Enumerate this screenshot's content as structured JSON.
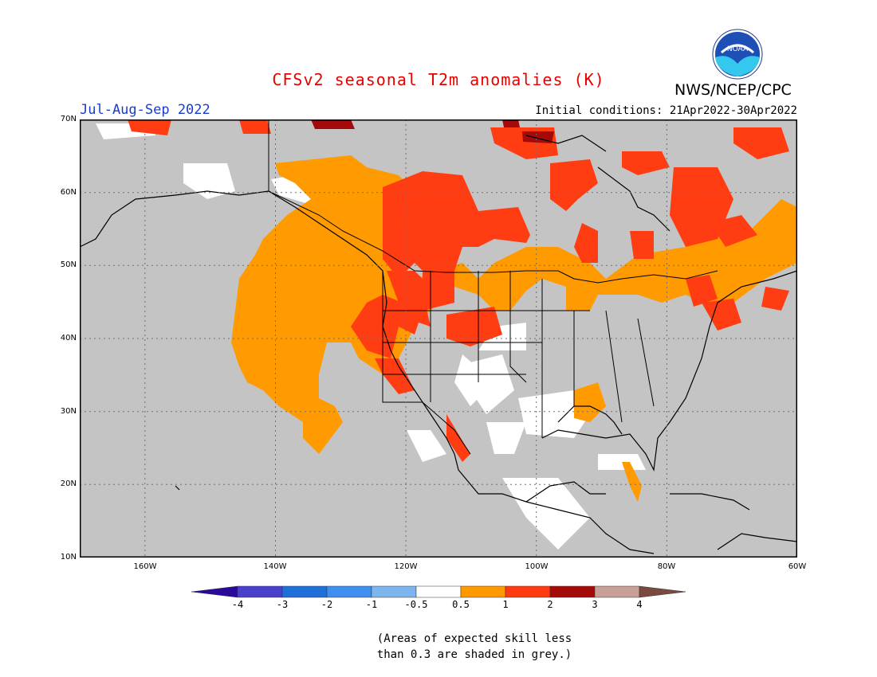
{
  "title": "CFSv2 seasonal T2m anomalies (K)",
  "agency": "NWS/NCEP/CPC",
  "logo_text": "NOAA",
  "season": "Jul-Aug-Sep 2022",
  "initial_conditions": "Initial conditions: 21Apr2022-30Apr2022",
  "lat_labels": [
    "70N",
    "60N",
    "50N",
    "40N",
    "30N",
    "20N",
    "10N"
  ],
  "lon_labels": [
    "160W",
    "140W",
    "120W",
    "100W",
    "80W",
    "60W"
  ],
  "colorbar": {
    "labels": [
      "-4",
      "-3",
      "-2",
      "-1",
      "-0.5",
      "0.5",
      "1",
      "2",
      "3",
      "4"
    ],
    "colors": [
      "#2a0a9a",
      "#4b3fce",
      "#1f6fd9",
      "#3f8ff0",
      "#7db6ef",
      "#ffffff",
      "#ff9900",
      "#ff3a12",
      "#a50a0a",
      "#c8a095",
      "#7a4a40"
    ]
  },
  "colors": {
    "land_grey": "#c4c4c4",
    "lo": "#ffffff",
    "mid": "#ff9a00",
    "hi": "#ff3c12",
    "xhi": "#a50a0a",
    "title": "#e60000",
    "season": "#1a3ccc"
  },
  "note_line1": "(Areas of expected skill less",
  "note_line2": "than 0.3 are shaded in grey.)"
}
